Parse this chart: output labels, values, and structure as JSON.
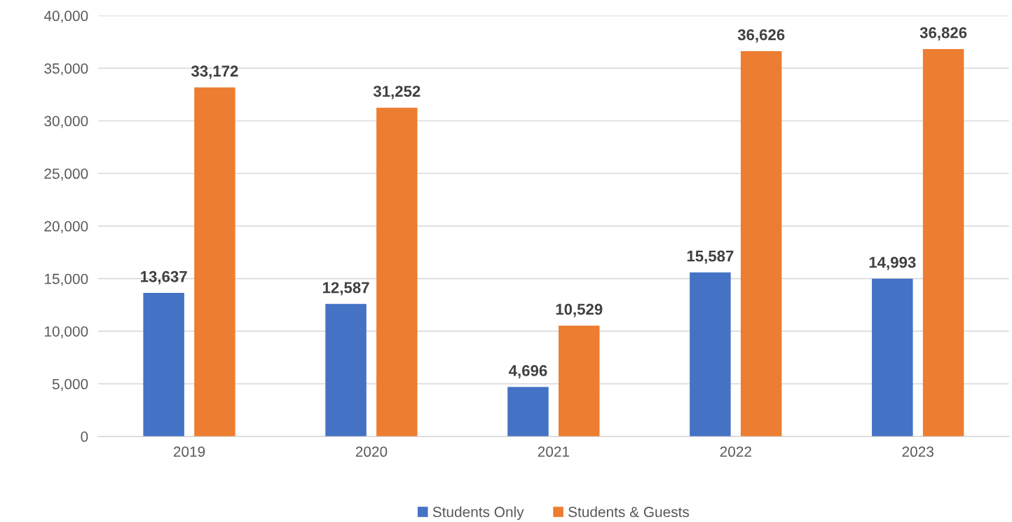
{
  "chart_data": {
    "type": "bar",
    "categories": [
      "2019",
      "2020",
      "2021",
      "2022",
      "2023"
    ],
    "series": [
      {
        "name": "Students Only",
        "color": "#4472c4",
        "values": [
          13637,
          12587,
          4696,
          15587,
          14993
        ],
        "value_labels": [
          "13,637",
          "12,587",
          "4,696",
          "15,587",
          "14,993"
        ]
      },
      {
        "name": "Students & Guests",
        "color": "#ed7d31",
        "values": [
          33172,
          31252,
          10529,
          36626,
          36826
        ],
        "value_labels": [
          "33,172",
          "31,252",
          "10,529",
          "36,626",
          "36,826"
        ]
      }
    ],
    "ylim": [
      0,
      40000
    ],
    "yticks": [
      {
        "value": 0,
        "label": "0"
      },
      {
        "value": 5000,
        "label": "5,000"
      },
      {
        "value": 10000,
        "label": "10,000"
      },
      {
        "value": 15000,
        "label": "15,000"
      },
      {
        "value": 20000,
        "label": "20,000"
      },
      {
        "value": 25000,
        "label": "25,000"
      },
      {
        "value": 30000,
        "label": "30,000"
      },
      {
        "value": 35000,
        "label": "35,000"
      },
      {
        "value": 40000,
        "label": "40,000"
      }
    ],
    "grid": "y",
    "legend": "bottom"
  }
}
